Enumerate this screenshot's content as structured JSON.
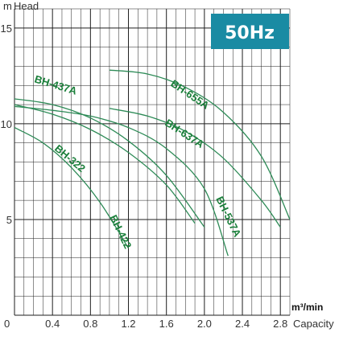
{
  "chart_data": {
    "type": "line",
    "badge": "50Hz",
    "ylabel_unit": "m",
    "ylabel": "Head",
    "xlabel_unit": "m³/min",
    "xlabel": "Capacity",
    "origin_label": "0",
    "xlim": [
      0,
      2.9
    ],
    "ylim": [
      0,
      16
    ],
    "x_ticks": [
      "0.4",
      "0.8",
      "1.2",
      "1.6",
      "2.0",
      "2.4",
      "2.8"
    ],
    "y_ticks": [
      "5",
      "10",
      "15"
    ],
    "grid": true,
    "colors": {
      "grid": "#1e1e1e",
      "curve": "#2e8b57",
      "label": "#1a7f3a",
      "badge": "#1a8ba3",
      "axis_text": "#333333"
    },
    "series": [
      {
        "name": "BH-437A",
        "x": [
          0,
          0.4,
          0.8,
          1.2,
          1.6,
          2.0
        ],
        "y": [
          11.3,
          11.0,
          10.3,
          9.1,
          7.3,
          4.6
        ]
      },
      {
        "name": "BH-322",
        "x": [
          0,
          0.3,
          0.6,
          0.9,
          1.2
        ],
        "y": [
          9.8,
          9.0,
          7.7,
          5.9,
          3.5
        ]
      },
      {
        "name": "BH-422",
        "x": [
          0,
          0.4,
          0.8,
          1.2,
          1.6,
          1.9
        ],
        "y": [
          11.0,
          10.5,
          9.7,
          8.5,
          6.8,
          4.8
        ]
      },
      {
        "name": "BH-655A",
        "x": [
          1.0,
          1.4,
          1.8,
          2.2,
          2.6,
          2.9
        ],
        "y": [
          12.8,
          12.6,
          11.9,
          10.6,
          8.3,
          5.0
        ]
      },
      {
        "name": "BH-637A",
        "x": [
          1.0,
          1.4,
          1.8,
          2.2,
          2.6,
          2.8
        ],
        "y": [
          10.8,
          10.4,
          9.6,
          8.2,
          6.0,
          4.6
        ]
      },
      {
        "name": "BH-537A",
        "x": [
          0,
          0.4,
          0.8,
          1.2,
          1.6,
          2.0,
          2.25
        ],
        "y": [
          10.9,
          10.7,
          10.4,
          9.8,
          8.7,
          6.6,
          3.1
        ]
      }
    ]
  }
}
